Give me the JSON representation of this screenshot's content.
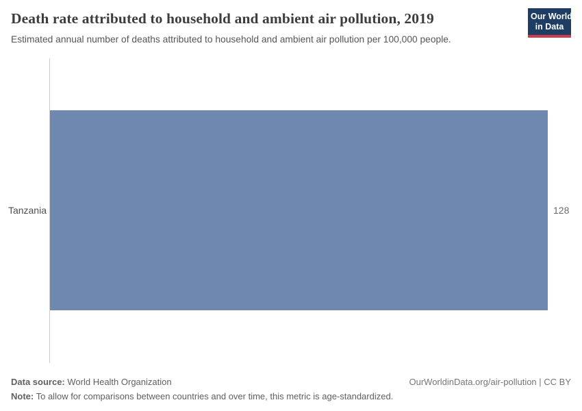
{
  "header": {
    "title": "Death rate attributed to household and ambient air pollution, 2019",
    "subtitle": "Estimated annual number of deaths attributed to household and ambient air pollution per 100,000 people.",
    "logo": {
      "line1": "Our World",
      "line2": "in Data"
    }
  },
  "chart_data": {
    "type": "bar",
    "orientation": "horizontal",
    "categories": [
      "Tanzania"
    ],
    "values": [
      128
    ],
    "value_labels": [
      "128"
    ],
    "title": "Death rate attributed to household and ambient air pollution, 2019",
    "xlabel": "",
    "ylabel": "",
    "xlim": [
      0,
      128
    ],
    "grid": false,
    "legend": false,
    "bar_color": "#6e88af"
  },
  "chart": {
    "entity_label": "Tanzania",
    "value_label": "128"
  },
  "footer": {
    "source_label": "Data source:",
    "source_value": "World Health Organization",
    "note_label": "Note:",
    "note_value": "To allow for comparisons between countries and over time, this metric is age-standardized.",
    "citation": "OurWorldinData.org/air-pollution | CC BY"
  },
  "colors": {
    "bar": "#6e88af",
    "logo_bg": "#1d3d63",
    "logo_red": "#cf3b4b",
    "axis_line": "#ccc"
  }
}
